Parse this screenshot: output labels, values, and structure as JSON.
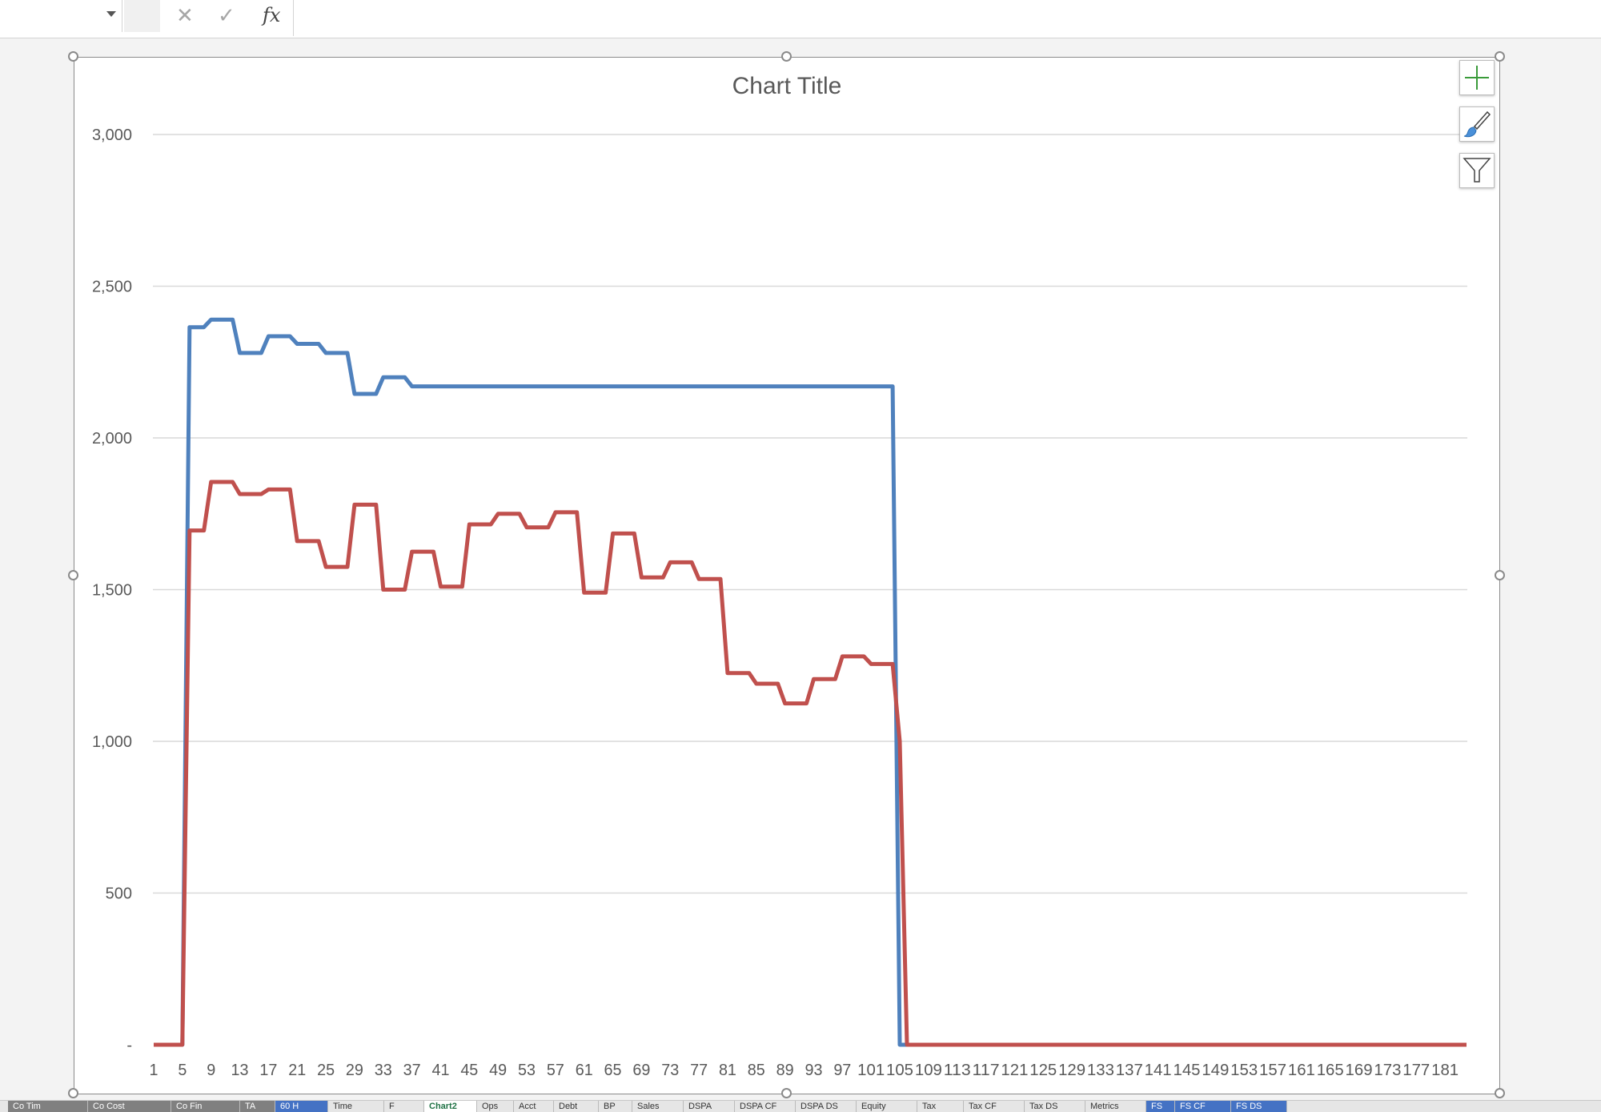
{
  "formula_bar": {
    "name_box_value": "",
    "cancel_glyph": "✕",
    "enter_glyph": "✓",
    "fx_label": "fx",
    "formula_value": ""
  },
  "colors": {
    "series1": "#4f81bd",
    "series2": "#c0504d",
    "gridline": "#d9d9d9",
    "axis_text": "#595959",
    "title_text": "#595959",
    "add_icon": "#3a9b3a"
  },
  "chart_elements_buttons": [
    {
      "icon": "plus-icon"
    },
    {
      "icon": "paintbrush-icon"
    },
    {
      "icon": "filter-icon"
    }
  ],
  "chart_data": {
    "type": "line",
    "title": "Chart Title",
    "xlabel": "",
    "ylabel": "",
    "ylim": [
      0,
      3000
    ],
    "y_ticks": [
      0,
      500,
      1000,
      1500,
      2000,
      2500,
      3000
    ],
    "y_tick_labels": [
      "-",
      "500",
      "1,000",
      "1,500",
      "2,000",
      "2,500",
      "3,000"
    ],
    "x_count": 184,
    "x_tick_labels": [
      "1",
      "5",
      "9",
      "13",
      "17",
      "21",
      "25",
      "29",
      "33",
      "37",
      "41",
      "45",
      "49",
      "53",
      "57",
      "61",
      "65",
      "69",
      "73",
      "77",
      "81",
      "85",
      "89",
      "93",
      "97",
      "101",
      "105",
      "109",
      "113",
      "117",
      "121",
      "125",
      "129",
      "133",
      "137",
      "141",
      "145",
      "149",
      "153",
      "157",
      "161",
      "165",
      "169",
      "173",
      "177",
      "181"
    ],
    "grid": true,
    "legend": "none",
    "series": [
      {
        "segments": [
          [
            1,
            0
          ],
          [
            5,
            0
          ],
          [
            6,
            2365
          ],
          [
            8,
            2365
          ],
          [
            9,
            2390
          ],
          [
            12,
            2390
          ],
          [
            13,
            2280
          ],
          [
            16,
            2280
          ],
          [
            17,
            2335
          ],
          [
            20,
            2335
          ],
          [
            21,
            2310
          ],
          [
            24,
            2310
          ],
          [
            25,
            2280
          ],
          [
            28,
            2280
          ],
          [
            29,
            2145
          ],
          [
            32,
            2145
          ],
          [
            33,
            2200
          ],
          [
            36,
            2200
          ],
          [
            37,
            2170
          ],
          [
            104,
            2170
          ],
          [
            105,
            0
          ],
          [
            184,
            0
          ]
        ]
      },
      {
        "segments": [
          [
            1,
            0
          ],
          [
            5,
            0
          ],
          [
            6,
            1695
          ],
          [
            8,
            1695
          ],
          [
            9,
            1855
          ],
          [
            12,
            1855
          ],
          [
            13,
            1815
          ],
          [
            16,
            1815
          ],
          [
            17,
            1830
          ],
          [
            20,
            1830
          ],
          [
            21,
            1660
          ],
          [
            24,
            1660
          ],
          [
            25,
            1575
          ],
          [
            28,
            1575
          ],
          [
            29,
            1780
          ],
          [
            32,
            1780
          ],
          [
            33,
            1500
          ],
          [
            36,
            1500
          ],
          [
            37,
            1625
          ],
          [
            40,
            1625
          ],
          [
            41,
            1510
          ],
          [
            44,
            1510
          ],
          [
            45,
            1715
          ],
          [
            48,
            1715
          ],
          [
            49,
            1750
          ],
          [
            52,
            1750
          ],
          [
            53,
            1705
          ],
          [
            56,
            1705
          ],
          [
            57,
            1755
          ],
          [
            60,
            1755
          ],
          [
            61,
            1490
          ],
          [
            64,
            1490
          ],
          [
            65,
            1685
          ],
          [
            68,
            1685
          ],
          [
            69,
            1540
          ],
          [
            72,
            1540
          ],
          [
            73,
            1590
          ],
          [
            76,
            1590
          ],
          [
            77,
            1535
          ],
          [
            80,
            1535
          ],
          [
            81,
            1225
          ],
          [
            84,
            1225
          ],
          [
            85,
            1190
          ],
          [
            88,
            1190
          ],
          [
            89,
            1125
          ],
          [
            92,
            1125
          ],
          [
            93,
            1205
          ],
          [
            96,
            1205
          ],
          [
            97,
            1280
          ],
          [
            100,
            1280
          ],
          [
            101,
            1255
          ],
          [
            104,
            1255
          ],
          [
            105,
            1000
          ],
          [
            106,
            0
          ],
          [
            184,
            0
          ]
        ]
      }
    ]
  },
  "sheet_tabs": [
    "Co Tim",
    "Co Cost",
    "Co Fin",
    "TA",
    "60 H",
    "Time",
    "F",
    "Chart2",
    "Ops",
    "Acct",
    "Debt",
    "BP",
    "Sales",
    "DSPA",
    "DSPA CF",
    "DSPA DS",
    "Equity",
    "Tax",
    "Tax CF",
    "Tax DS",
    "Metrics",
    "FS",
    "FS CF",
    "FS DS"
  ]
}
